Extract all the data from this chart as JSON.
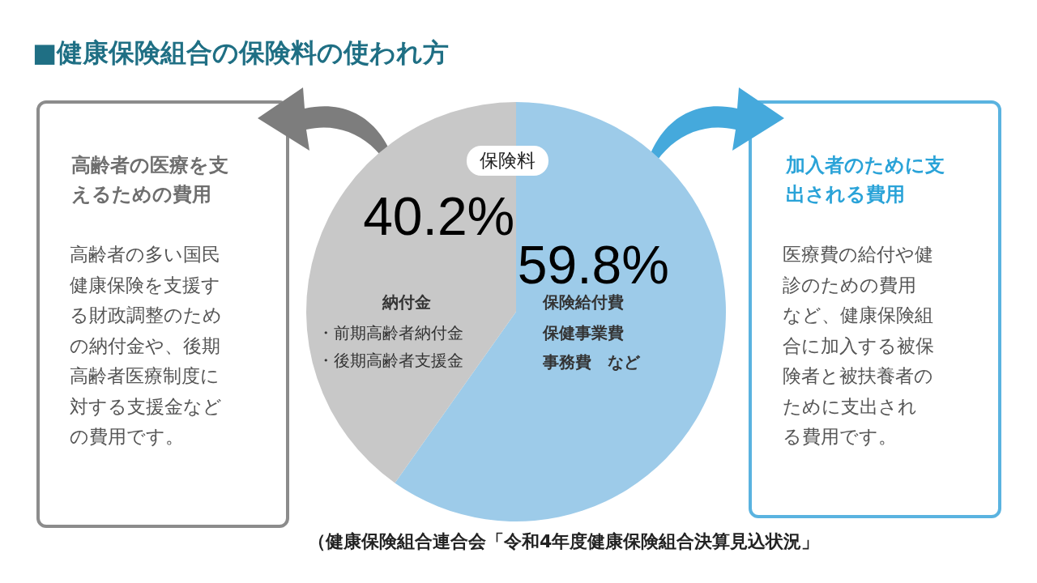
{
  "chart_data": {
    "type": "pie",
    "title": "■健康保険組合の保険料の使われ方",
    "categories": [
      null,
      null
    ],
    "values": [
      59.8,
      40.2
    ],
    "colors": [
      "#9dcbe9",
      "#c8c8c8"
    ],
    "value_labels": [
      "59.8%",
      "40.2%"
    ],
    "annotations": [
      "保険料",
      "納付金",
      "・前期高齢者納付金",
      "・後期高齢者支援金",
      "保険給付費",
      "保健事業費",
      "事務費　など",
      "高齢者の医療を支えるための費用",
      "高齢者の多い国民健康保険を支援する財政調整のための納付金や、後期高齢者医療制度に対する支援金などの費用です。",
      "加入者のために支出される費用",
      "医療費の給付や健診のための費用など、健康保険組合に加入する被保険者と被扶養者のために支出される費用です。",
      "（健康保険組合連合会「令和4年度健康保険組合決算見込状況」"
    ]
  }
}
